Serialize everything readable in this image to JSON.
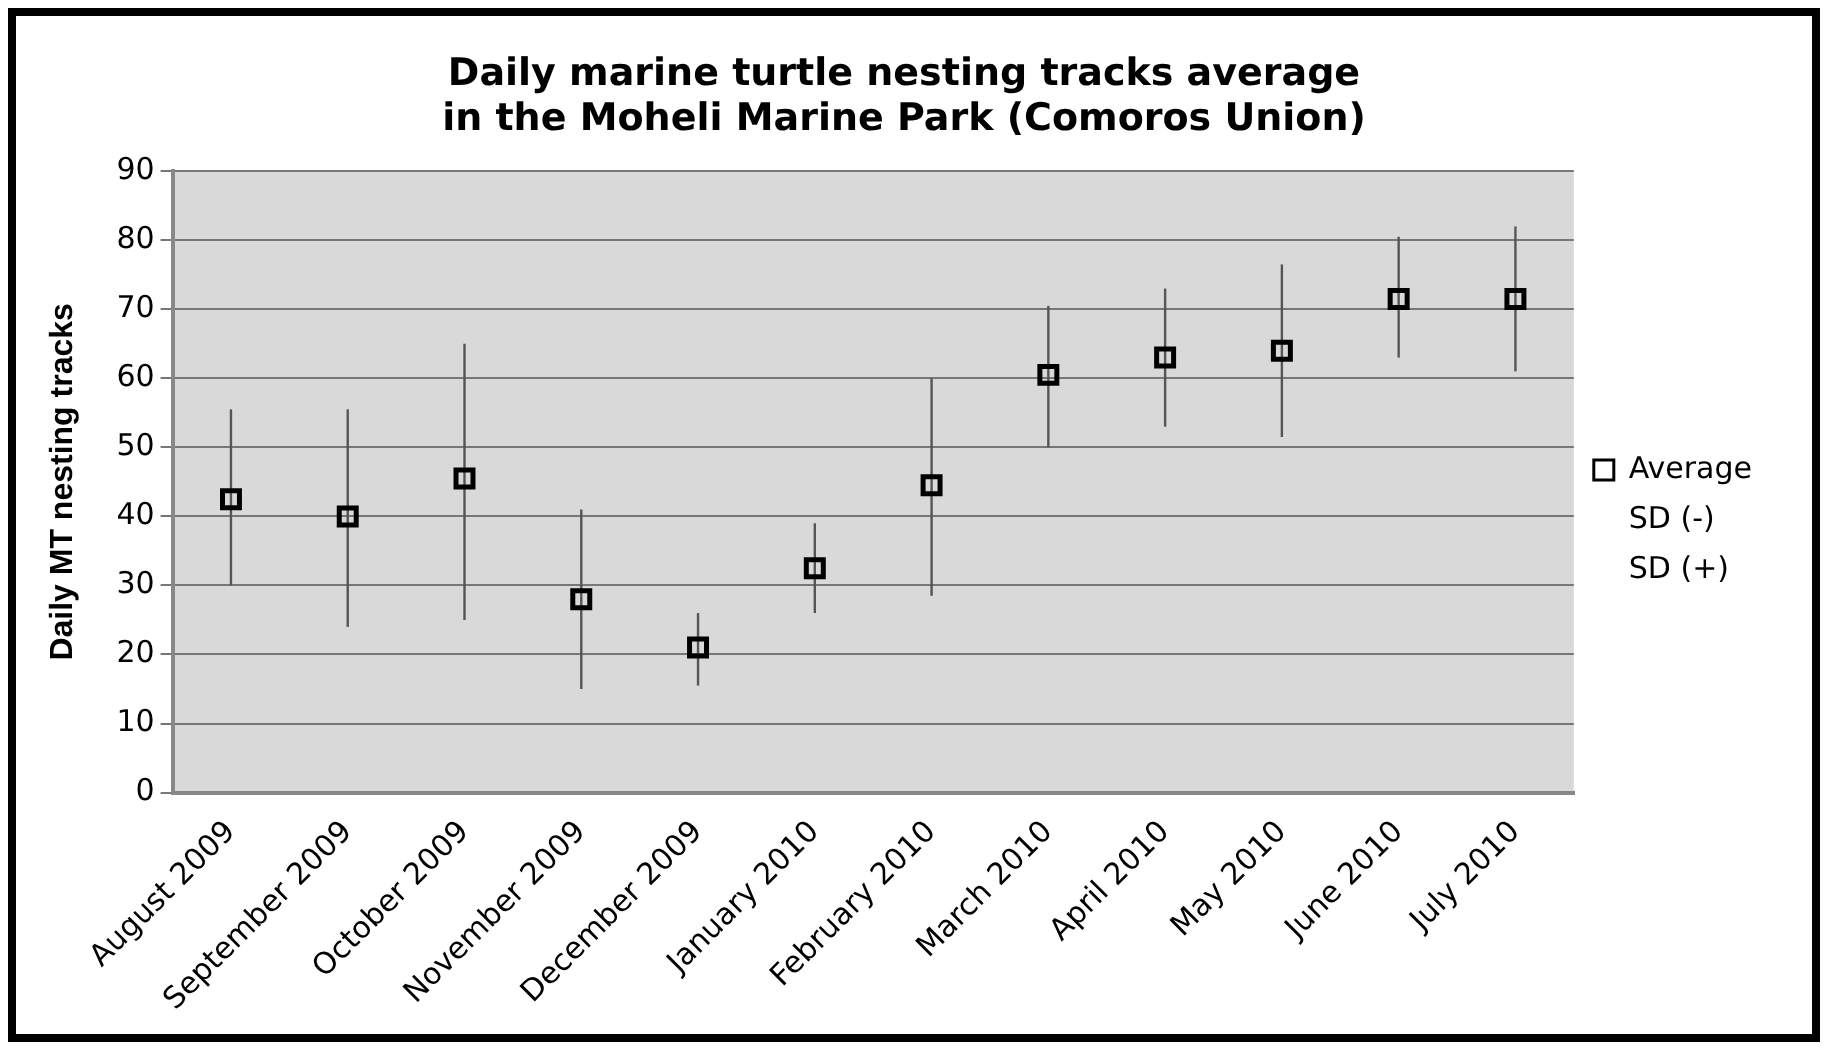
{
  "chart_data": {
    "type": "scatter",
    "title": [
      "Daily marine turtle nesting tracks average",
      "in the Moheli Marine Park (Comoros Union)"
    ],
    "ylabel": "Daily MT nesting tracks",
    "categories": [
      "August 2009",
      "September 2009",
      "October 2009",
      "November 2009",
      "December 2009",
      "January 2010",
      "February 2010",
      "March 2010",
      "April 2010",
      "May 2010",
      "June 2010",
      "July 2010"
    ],
    "series": [
      {
        "name": "Average",
        "color": "#000000",
        "values": [
          42.5,
          40,
          45.5,
          28,
          21,
          32.5,
          44.5,
          60.5,
          63,
          64,
          71.5,
          71.5
        ],
        "errors": [
          [
            30,
            55.5
          ],
          [
            24,
            55.5
          ],
          [
            25,
            65
          ],
          [
            15,
            41
          ],
          [
            15.5,
            26
          ],
          [
            26,
            39
          ],
          [
            28.5,
            60
          ],
          [
            50,
            70.5
          ],
          [
            53,
            73
          ],
          [
            51.5,
            76.5
          ],
          [
            63,
            80.5
          ],
          [
            61,
            82
          ]
        ]
      }
    ],
    "annotations": [
      "SD (-)",
      "SD (+)"
    ],
    "marker": "square",
    "ylim": [
      0,
      90
    ],
    "yticks": [
      0,
      10,
      20,
      30,
      40,
      50,
      60,
      70,
      80,
      90
    ],
    "grid": "y",
    "legend": "right"
  }
}
